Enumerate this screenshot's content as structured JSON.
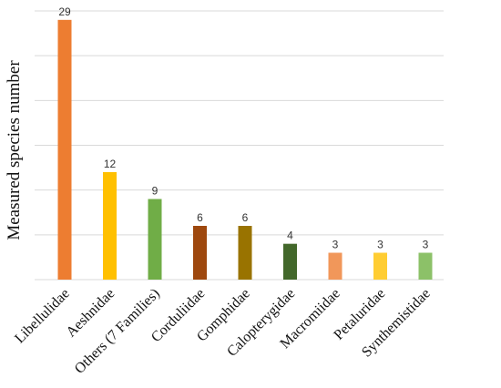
{
  "chart_data": {
    "type": "bar",
    "title": "",
    "xlabel": "",
    "ylabel": "Measured species number",
    "ylim": [
      0,
      30
    ],
    "grid": true,
    "legend": "none",
    "categories": [
      "Libellulidae",
      "Aeshnidae",
      "Others (7 Families)",
      "Corduliidae",
      "Gomphidae",
      "Calopterygidae",
      "Macromiidae",
      "Petaluridae",
      "Synthemistidae"
    ],
    "values": [
      29,
      12,
      9,
      6,
      6,
      4,
      3,
      3,
      3
    ],
    "colors": [
      "#ED7D31",
      "#FFC000",
      "#70AD47",
      "#9E480E",
      "#997300",
      "#43682B",
      "#F1975A",
      "#FFCD33",
      "#8CC168"
    ]
  }
}
